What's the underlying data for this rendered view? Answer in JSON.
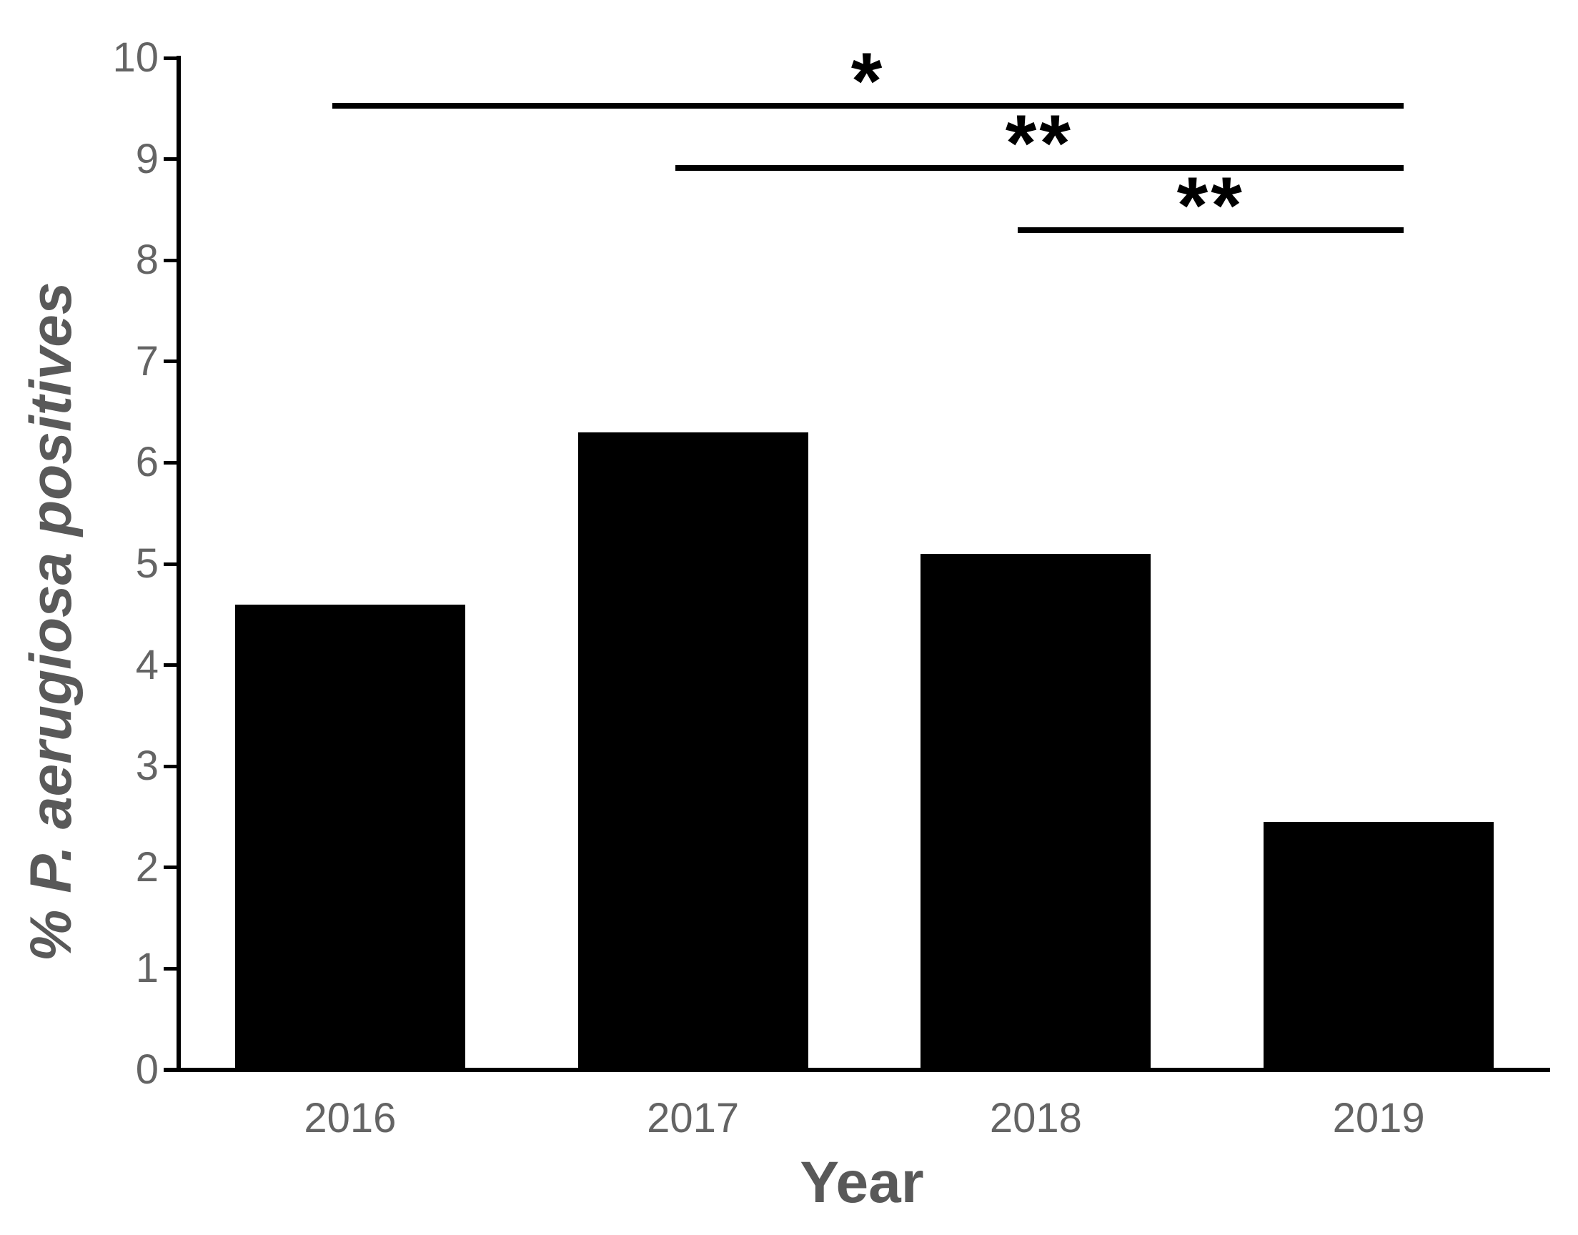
{
  "chart_data": {
    "type": "bar",
    "title": "",
    "categories": [
      "2016",
      "2017",
      "2018",
      "2019"
    ],
    "values": [
      4.6,
      6.3,
      5.1,
      2.45
    ],
    "xlabel": "Year",
    "ylabel": "% P. aerugiosa positives",
    "ylim": [
      0,
      10
    ],
    "yticks": [
      0,
      1,
      2,
      3,
      4,
      5,
      6,
      7,
      8,
      9,
      10
    ],
    "grid": "off",
    "legend": "none",
    "bar_color": "#000000",
    "significance_brackets": [
      {
        "from": "2016",
        "to": "2019",
        "label": "*",
        "line_y": 9.53
      },
      {
        "from": "2017",
        "to": "2019",
        "label": "**",
        "line_y": 8.91
      },
      {
        "from": "2018",
        "to": "2019",
        "label": "**",
        "line_y": 8.3
      }
    ],
    "colors": {
      "bar": "#000000",
      "axis": "#000000",
      "tick_label": "#646464",
      "axis_title": "#595959",
      "background": "#ffffff"
    }
  }
}
